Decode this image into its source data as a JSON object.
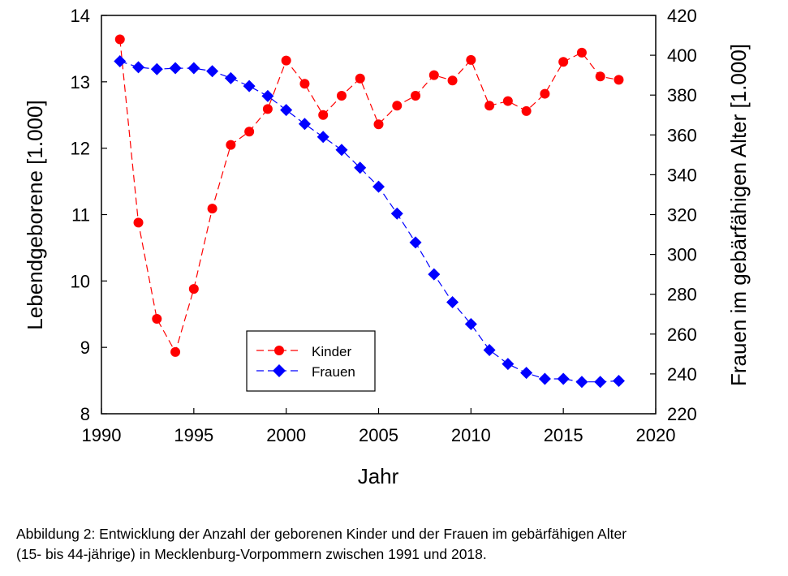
{
  "chart_data": {
    "type": "line",
    "title": "",
    "xlabel": "Jahr",
    "ylabel_left": "Lebendgeborene [1.000]",
    "ylabel_right": "Frauen im gebärfähigen Alter [1.000]",
    "xlim": [
      1990,
      2020
    ],
    "ylim_left": [
      8,
      14
    ],
    "ylim_right": [
      220,
      420
    ],
    "x_ticks": [
      "1990",
      "1995",
      "2000",
      "2005",
      "2010",
      "2015",
      "2020"
    ],
    "y_left_ticks": [
      "8",
      "9",
      "10",
      "11",
      "12",
      "13",
      "14"
    ],
    "y_right_ticks": [
      "220",
      "240",
      "260",
      "280",
      "300",
      "320",
      "340",
      "360",
      "380",
      "400",
      "420"
    ],
    "grid": false,
    "legend_position": "lower-left",
    "series": [
      {
        "name": "Kinder",
        "axis": "left",
        "color": "#ff0000",
        "marker": "circle",
        "line": "dashed",
        "x": [
          1991,
          1992,
          1993,
          1994,
          1995,
          1996,
          1997,
          1998,
          1999,
          2000,
          2001,
          2002,
          2003,
          2004,
          2005,
          2006,
          2007,
          2008,
          2009,
          2010,
          2011,
          2012,
          2013,
          2014,
          2015,
          2016,
          2017,
          2018
        ],
        "values": [
          13.64,
          10.88,
          9.43,
          8.93,
          9.88,
          11.09,
          12.05,
          12.25,
          12.59,
          13.32,
          12.97,
          12.5,
          12.79,
          13.05,
          12.36,
          12.64,
          12.79,
          13.1,
          13.02,
          13.33,
          12.64,
          12.71,
          12.56,
          12.82,
          13.3,
          13.44,
          13.08,
          13.03
        ]
      },
      {
        "name": "Frauen",
        "axis": "right",
        "color": "#0000ff",
        "marker": "diamond",
        "line": "dashed",
        "x": [
          1991,
          1992,
          1993,
          1994,
          1995,
          1996,
          1997,
          1998,
          1999,
          2000,
          2001,
          2002,
          2003,
          2004,
          2005,
          2006,
          2007,
          2008,
          2009,
          2010,
          2011,
          2012,
          2013,
          2014,
          2015,
          2016,
          2017,
          2018
        ],
        "values": [
          397,
          394,
          393,
          393.5,
          393.5,
          392,
          388.5,
          384.5,
          379.5,
          372.5,
          365.5,
          359,
          352.5,
          343.5,
          334,
          320.5,
          306,
          290,
          276,
          265,
          252,
          245,
          240.5,
          237.5,
          237.5,
          236,
          236,
          236.5
        ]
      }
    ]
  },
  "caption": {
    "line1": "Abbildung 2: Entwicklung der Anzahl der geborenen Kinder und der Frauen im gebärfähigen Alter",
    "line2": "(15- bis 44-jährige) in Mecklenburg-Vorpommern zwischen 1991 und 2018."
  }
}
